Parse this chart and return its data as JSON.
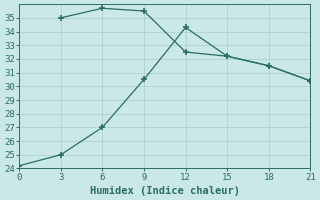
{
  "line1_x": [
    3,
    6,
    9,
    12,
    15,
    18,
    21
  ],
  "line1_y": [
    35.0,
    35.7,
    35.5,
    32.5,
    32.2,
    31.5,
    30.4
  ],
  "line2_x": [
    0,
    3,
    6,
    9,
    12,
    15,
    18,
    21
  ],
  "line2_y": [
    24.2,
    25.0,
    27.0,
    30.5,
    34.3,
    32.2,
    31.5,
    30.4
  ],
  "line_color": "#2a6e62",
  "bg_color": "#c9e8e6",
  "grid_color": "#b4d4d0",
  "xlabel": "Humidex (Indice chaleur)",
  "xlim": [
    0,
    21
  ],
  "ylim": [
    24,
    36
  ],
  "xticks": [
    0,
    3,
    6,
    9,
    12,
    15,
    18,
    21
  ],
  "yticks": [
    24,
    25,
    26,
    27,
    28,
    29,
    30,
    31,
    32,
    33,
    34,
    35
  ],
  "xlabel_fontsize": 7.5,
  "tick_fontsize": 6.5
}
